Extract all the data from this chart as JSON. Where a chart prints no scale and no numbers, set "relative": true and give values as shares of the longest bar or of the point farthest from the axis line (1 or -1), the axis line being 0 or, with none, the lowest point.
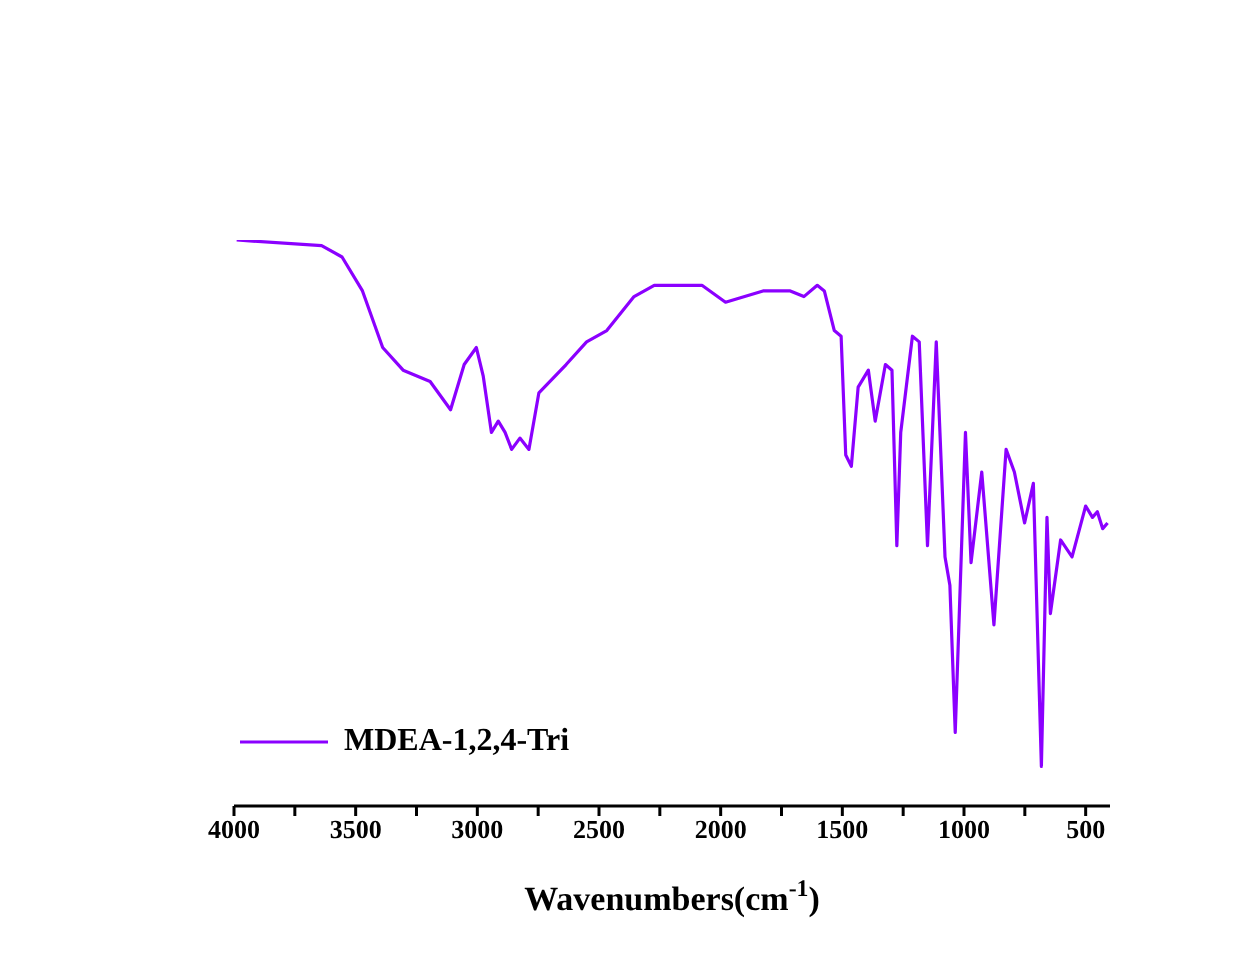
{
  "chart_data": {
    "type": "line",
    "xlabel": "Wavenumbers(cm$^{-1}$)",
    "relative": true,
    "legend": "bottom left",
    "grid": false,
    "marker": "none",
    "line_style": "solid",
    "xlim": [
      4000,
      400
    ],
    "xticks": [
      4000,
      {
        "value": 3750,
        "label": null
      },
      3500,
      {
        "value": 3250,
        "label": null
      },
      3000,
      {
        "value": 2750,
        "label": null
      },
      2500,
      {
        "value": 2250,
        "label": null
      },
      2000,
      {
        "value": 1750,
        "label": null
      },
      1500,
      {
        "value": 1250,
        "label": null
      },
      1000,
      {
        "value": 750,
        "label": null
      },
      500
    ],
    "series": [
      {
        "name": "MDEA-1,2,4-Tri",
        "color": "#8b00ff",
        "x": [
          3989,
          3640,
          3556,
          3472,
          3389,
          3305,
          3194,
          3110,
          3054,
          3004,
          2976,
          2942,
          2914,
          2886,
          2859,
          2825,
          2788,
          2747,
          2635,
          2551,
          2468,
          2356,
          2273,
          2077,
          1980,
          1826,
          1714,
          1658,
          1603,
          1574,
          1533,
          1505,
          1486,
          1463,
          1435,
          1393,
          1365,
          1323,
          1296,
          1276,
          1260,
          1212,
          1184,
          1150,
          1114,
          1078,
          1058,
          1036,
          994,
          971,
          927,
          877,
          827,
          793,
          751,
          715,
          682,
          659,
          645,
          603,
          556,
          500,
          472,
          452,
          430,
          410
        ],
        "values": [
          1.0,
          0.99,
          0.97,
          0.91,
          0.81,
          0.77,
          0.75,
          0.7,
          0.78,
          0.81,
          0.76,
          0.66,
          0.68,
          0.66,
          0.63,
          0.65,
          0.63,
          0.73,
          0.78,
          0.82,
          0.84,
          0.9,
          0.92,
          0.92,
          0.89,
          0.91,
          0.91,
          0.9,
          0.92,
          0.91,
          0.84,
          0.83,
          0.62,
          0.6,
          0.74,
          0.77,
          0.68,
          0.78,
          0.77,
          0.46,
          0.66,
          0.83,
          0.82,
          0.46,
          0.82,
          0.44,
          0.39,
          0.13,
          0.66,
          0.43,
          0.59,
          0.32,
          0.63,
          0.59,
          0.5,
          0.57,
          0.07,
          0.51,
          0.34,
          0.47,
          0.44,
          0.53,
          0.51,
          0.52,
          0.49,
          0.5
        ]
      }
    ]
  }
}
